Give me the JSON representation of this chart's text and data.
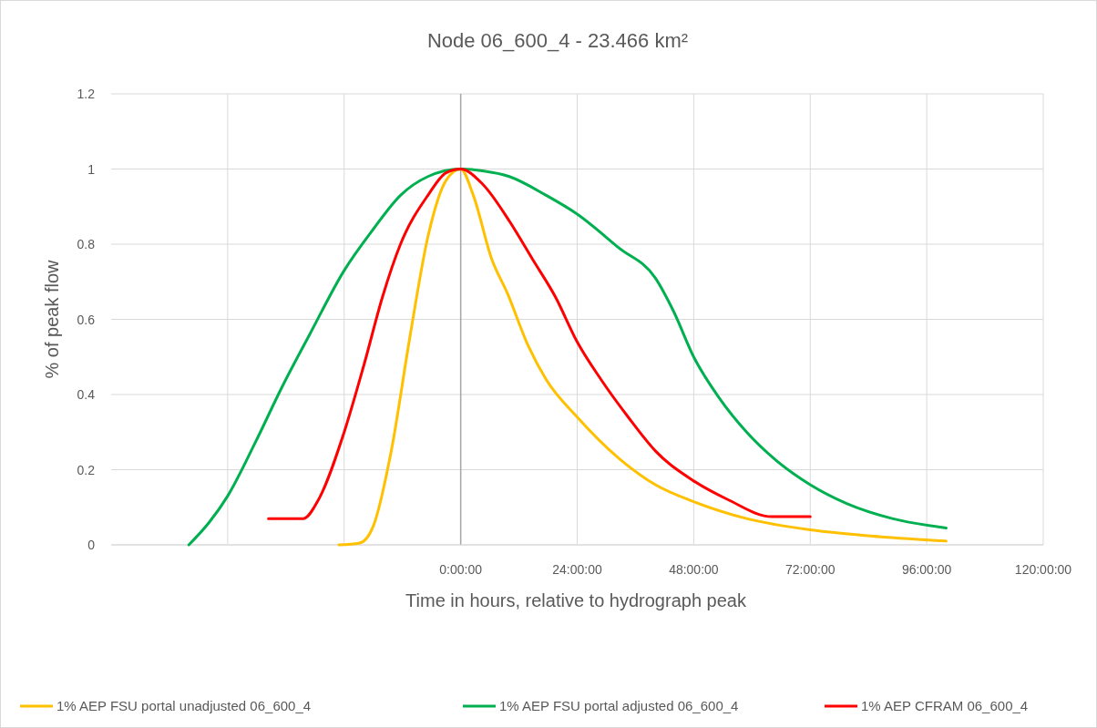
{
  "chart_data": {
    "type": "line",
    "title": "Node 06_600_4 - 23.466 km²",
    "xlabel": "Time in hours, relative to hydrograph peak",
    "ylabel": "% of peak flow",
    "xlim": [
      -72,
      120
    ],
    "xticks": [
      {
        "value": -48,
        "label": null
      },
      {
        "value": -24,
        "label": null
      },
      {
        "value": 0,
        "label": "0:00:00"
      },
      {
        "value": 24,
        "label": "24:00:00"
      },
      {
        "value": 48,
        "label": "48:00:00"
      },
      {
        "value": 72,
        "label": "72:00:00"
      },
      {
        "value": 96,
        "label": "96:00:00"
      },
      {
        "value": 120,
        "label": "120:00:00"
      }
    ],
    "ylim": [
      0,
      1.2
    ],
    "yticks": [
      0,
      0.2,
      0.4,
      0.6,
      0.8,
      1,
      1.2
    ],
    "grid": true,
    "legend": "bottom",
    "line_style": "solid",
    "ref_lines": [
      {
        "axis": "x",
        "value": 0,
        "color": "#a6a6a6"
      }
    ],
    "series": [
      {
        "name": "1% AEP FSU portal unadjusted 06_600_4",
        "color": "#ffc000",
        "x": [
          -25.1,
          -20.8,
          -18,
          -14.3,
          -10.5,
          -6.75,
          -3,
          0,
          2.6,
          6.4,
          9.6,
          13.9,
          17.6,
          24,
          32.6,
          40.1,
          48,
          58.9,
          72,
          83.3,
          100
        ],
        "values": [
          0,
          0.005,
          0.05,
          0.25,
          0.55,
          0.82,
          0.97,
          1,
          0.93,
          0.76,
          0.67,
          0.53,
          0.44,
          0.34,
          0.23,
          0.16,
          0.115,
          0.07,
          0.04,
          0.025,
          0.01
        ]
      },
      {
        "name": "1% AEP FSU portal adjusted 06_600_4",
        "color": "#00b050",
        "x": [
          -56,
          -51.8,
          -48,
          -42.4,
          -36.8,
          -31.1,
          -24,
          -18,
          -12.4,
          -6.75,
          0,
          4.5,
          10,
          17.6,
          24,
          32.6,
          40.1,
          43.9,
          48,
          53.3,
          58.9,
          64.5,
          72,
          79.5,
          88.9,
          100
        ],
        "values": [
          0,
          0.06,
          0.13,
          0.27,
          0.42,
          0.56,
          0.73,
          0.84,
          0.93,
          0.98,
          1,
          0.995,
          0.98,
          0.93,
          0.88,
          0.79,
          0.71,
          0.62,
          0.5,
          0.39,
          0.3,
          0.23,
          0.16,
          0.11,
          0.07,
          0.045
        ]
      },
      {
        "name": "1% AEP CFRAM 06_600_4",
        "color": "#ff0000",
        "x": [
          -39.6,
          -32.4,
          -29.3,
          -24,
          -19.9,
          -16.1,
          -12.4,
          -6.75,
          -3,
          0,
          4.5,
          10.1,
          14.8,
          19.5,
          24,
          28.9,
          34.5,
          40.1,
          48,
          55.1,
          64.1,
          72
        ],
        "values": [
          0.07,
          0.07,
          0.12,
          0.3,
          0.48,
          0.66,
          0.8,
          0.93,
          0.99,
          1,
          0.96,
          0.86,
          0.76,
          0.66,
          0.54,
          0.44,
          0.34,
          0.25,
          0.17,
          0.12,
          0.075,
          0.075
        ]
      }
    ]
  }
}
